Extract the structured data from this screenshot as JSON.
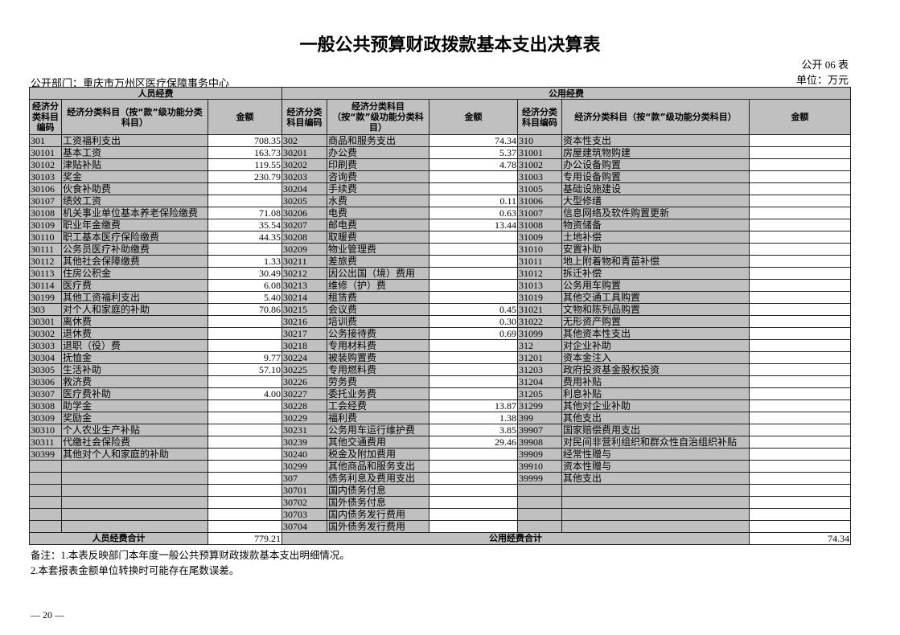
{
  "title": "一般公共预算财政拨款基本支出决算表",
  "table_no": "公开 06 表",
  "unit": "单位：万元",
  "department": "公开部门：重庆市万州区医疗保障事务中心",
  "groups": {
    "personnel": "人员经费",
    "public": "公用经费"
  },
  "headers": {
    "code_left": "经济分类科目编码",
    "name_left": "经济分类科目（按“款”级功能分类科目）",
    "amount": "金额",
    "code_mid": "经济分类科目编码",
    "name_mid": "经济分类科目（按“款”级功能分类科目）",
    "code_right": "经济分类科目编码",
    "name_right": "经济分类科目（按“款”级功能分类科目）"
  },
  "personnel_rows": [
    [
      "301",
      "工资福利支出",
      "708.35"
    ],
    [
      "30101",
      "基本工资",
      "163.73"
    ],
    [
      "30102",
      "津贴补贴",
      "119.55"
    ],
    [
      "30103",
      "奖金",
      "230.79"
    ],
    [
      "30106",
      "伙食补助费",
      ""
    ],
    [
      "30107",
      "绩效工资",
      ""
    ],
    [
      "30108",
      "机关事业单位基本养老保险缴费",
      "71.08"
    ],
    [
      "30109",
      "职业年金缴费",
      "35.54"
    ],
    [
      "30110",
      "职工基本医疗保险缴费",
      "44.35"
    ],
    [
      "30111",
      "公务员医疗补助缴费",
      ""
    ],
    [
      "30112",
      "其他社会保障缴费",
      "1.33"
    ],
    [
      "30113",
      "住房公积金",
      "30.49"
    ],
    [
      "30114",
      "医疗费",
      "6.08"
    ],
    [
      "30199",
      "其他工资福利支出",
      "5.40"
    ],
    [
      "303",
      "对个人和家庭的补助",
      "70.86"
    ],
    [
      "30301",
      "离休费",
      ""
    ],
    [
      "30302",
      "退休费",
      ""
    ],
    [
      "30303",
      "退职（役）费",
      ""
    ],
    [
      "30304",
      "抚恤金",
      "9.77"
    ],
    [
      "30305",
      "生活补助",
      "57.10"
    ],
    [
      "30306",
      "救济费",
      ""
    ],
    [
      "30307",
      "医疗费补助",
      "4.00"
    ],
    [
      "30308",
      "助学金",
      ""
    ],
    [
      "30309",
      "奖励金",
      ""
    ],
    [
      "30310",
      "个人农业生产补贴",
      ""
    ],
    [
      "30311",
      "代缴社会保险费",
      ""
    ],
    [
      "30399",
      "其他对个人和家庭的补助",
      ""
    ],
    [
      "",
      "",
      ""
    ],
    [
      "",
      "",
      ""
    ],
    [
      "",
      "",
      ""
    ],
    [
      "",
      "",
      ""
    ],
    [
      "",
      "",
      ""
    ],
    [
      "",
      "",
      ""
    ]
  ],
  "public_mid_rows": [
    [
      "302",
      "商品和服务支出",
      "74.34"
    ],
    [
      "30201",
      "办公费",
      "5.37"
    ],
    [
      "30202",
      "印刷费",
      "4.78"
    ],
    [
      "30203",
      "咨询费",
      ""
    ],
    [
      "30204",
      "手续费",
      ""
    ],
    [
      "30205",
      "水费",
      "0.11"
    ],
    [
      "30206",
      "电费",
      "0.63"
    ],
    [
      "30207",
      "邮电费",
      "13.44"
    ],
    [
      "30208",
      "取暖费",
      ""
    ],
    [
      "30209",
      "物业管理费",
      ""
    ],
    [
      "30211",
      "差旅费",
      ""
    ],
    [
      "30212",
      "因公出国（境）费用",
      ""
    ],
    [
      "30213",
      "维修（护）费",
      ""
    ],
    [
      "30214",
      "租赁费",
      ""
    ],
    [
      "30215",
      "会议费",
      "0.45"
    ],
    [
      "30216",
      "培训费",
      "0.30"
    ],
    [
      "30217",
      "公务接待费",
      "0.69"
    ],
    [
      "30218",
      "专用材料费",
      ""
    ],
    [
      "30224",
      "被装购置费",
      ""
    ],
    [
      "30225",
      "专用燃料费",
      ""
    ],
    [
      "30226",
      "劳务费",
      ""
    ],
    [
      "30227",
      "委托业务费",
      ""
    ],
    [
      "30228",
      "工会经费",
      "13.87"
    ],
    [
      "30229",
      "福利费",
      "1.38"
    ],
    [
      "30231",
      "公务用车运行维护费",
      "3.85"
    ],
    [
      "30239",
      "其他交通费用",
      "29.46"
    ],
    [
      "30240",
      "税金及附加费用",
      ""
    ],
    [
      "30299",
      "其他商品和服务支出",
      ""
    ],
    [
      "307",
      "债务利息及费用支出",
      ""
    ],
    [
      "30701",
      "国内债务付息",
      ""
    ],
    [
      "30702",
      "国外债务付息",
      ""
    ],
    [
      "30703",
      "国内债务发行费用",
      ""
    ],
    [
      "30704",
      "国外债务发行费用",
      ""
    ]
  ],
  "public_right_rows": [
    [
      "310",
      "资本性支出",
      ""
    ],
    [
      "31001",
      "房屋建筑物购建",
      ""
    ],
    [
      "31002",
      "办公设备购置",
      ""
    ],
    [
      "31003",
      "专用设备购置",
      ""
    ],
    [
      "31005",
      "基础设施建设",
      ""
    ],
    [
      "31006",
      "大型修缮",
      ""
    ],
    [
      "31007",
      "信息网络及软件购置更新",
      ""
    ],
    [
      "31008",
      "物资储备",
      ""
    ],
    [
      "31009",
      "土地补偿",
      ""
    ],
    [
      "31010",
      "安置补助",
      ""
    ],
    [
      "31011",
      "地上附着物和青苗补偿",
      ""
    ],
    [
      "31012",
      "拆迁补偿",
      ""
    ],
    [
      "31013",
      "公务用车购置",
      ""
    ],
    [
      "31019",
      "其他交通工具购置",
      ""
    ],
    [
      "31021",
      "文物和陈列品购置",
      ""
    ],
    [
      "31022",
      "无形资产购置",
      ""
    ],
    [
      "31099",
      "其他资本性支出",
      ""
    ],
    [
      "312",
      "对企业补助",
      ""
    ],
    [
      "31201",
      "资本金注入",
      ""
    ],
    [
      "31203",
      "政府投资基金股权投资",
      ""
    ],
    [
      "31204",
      "费用补贴",
      ""
    ],
    [
      "31205",
      "利息补贴",
      ""
    ],
    [
      "31299",
      "其他对企业补助",
      ""
    ],
    [
      "399",
      "其他支出",
      ""
    ],
    [
      "39907",
      "国家赔偿费用支出",
      ""
    ],
    [
      "39908",
      "对民间非营利组织和群众性自治组织补贴",
      ""
    ],
    [
      "39909",
      "经常性赠与",
      ""
    ],
    [
      "39910",
      "资本性赠与",
      ""
    ],
    [
      "39999",
      "其他支出",
      ""
    ],
    [
      "",
      "",
      ""
    ],
    [
      "",
      "",
      ""
    ],
    [
      "",
      "",
      ""
    ],
    [
      "",
      "",
      ""
    ]
  ],
  "totals": {
    "personnel_label": "人员经费合计",
    "personnel_value": "779.21",
    "public_label": "公用经费合计",
    "public_value": "74.34"
  },
  "notes": [
    "备注：1.本表反映部门本年度一般公共预算财政拨款基本支出明细情况。",
    "2.本套报表金额单位转换时可能存在尾数误差。"
  ],
  "page_number": "— 20 —"
}
